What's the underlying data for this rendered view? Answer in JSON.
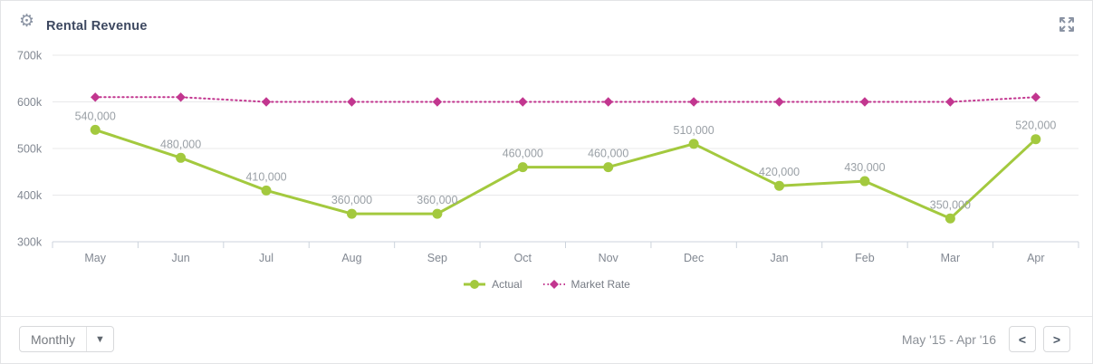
{
  "header": {
    "title": "Rental Revenue"
  },
  "chart_data": {
    "type": "line",
    "title": "Rental Revenue",
    "categories": [
      "May",
      "Jun",
      "Jul",
      "Aug",
      "Sep",
      "Oct",
      "Nov",
      "Dec",
      "Jan",
      "Feb",
      "Mar",
      "Apr"
    ],
    "series": [
      {
        "name": "Actual",
        "color": "#a3c93e",
        "line_style": "solid",
        "marker": "circle",
        "values": [
          540000,
          480000,
          410000,
          360000,
          360000,
          460000,
          460000,
          510000,
          420000,
          430000,
          350000,
          520000
        ],
        "data_labels": [
          "540,000",
          "480,000",
          "410,000",
          "360,000",
          "360,000",
          "460,000",
          "460,000",
          "510,000",
          "420,000",
          "430,000",
          "350,000",
          "520,000"
        ]
      },
      {
        "name": "Market Rate",
        "color": "#c2368f",
        "line_style": "dotted",
        "marker": "diamond",
        "values": [
          610000,
          610000,
          600000,
          600000,
          600000,
          600000,
          600000,
          600000,
          600000,
          600000,
          600000,
          610000
        ],
        "data_labels": []
      }
    ],
    "ylim": [
      300000,
      700000
    ],
    "yticks": [
      {
        "value": 300000,
        "label": "300k"
      },
      {
        "value": 400000,
        "label": "400k"
      },
      {
        "value": 500000,
        "label": "500k"
      },
      {
        "value": 600000,
        "label": "600k"
      },
      {
        "value": 700000,
        "label": "700k"
      }
    ],
    "xlabel": "",
    "ylabel": "",
    "grid": true,
    "legend_position": "bottom-center"
  },
  "footer": {
    "interval_selector": {
      "value": "Monthly"
    },
    "date_range": "May '15 - Apr '16",
    "pager": {
      "prev": "<",
      "next": ">"
    }
  },
  "colors": {
    "actual_series": "#a3c93e",
    "market_rate_series": "#c2368f",
    "title_text": "#3d4860",
    "axis_text": "#828892",
    "data_label_text": "#9aa0a6",
    "gridline": "#e8e9ea",
    "axis_line": "#ccd3dc",
    "card_border": "#e3e4e6",
    "icon_gray": "#8a93a3"
  }
}
